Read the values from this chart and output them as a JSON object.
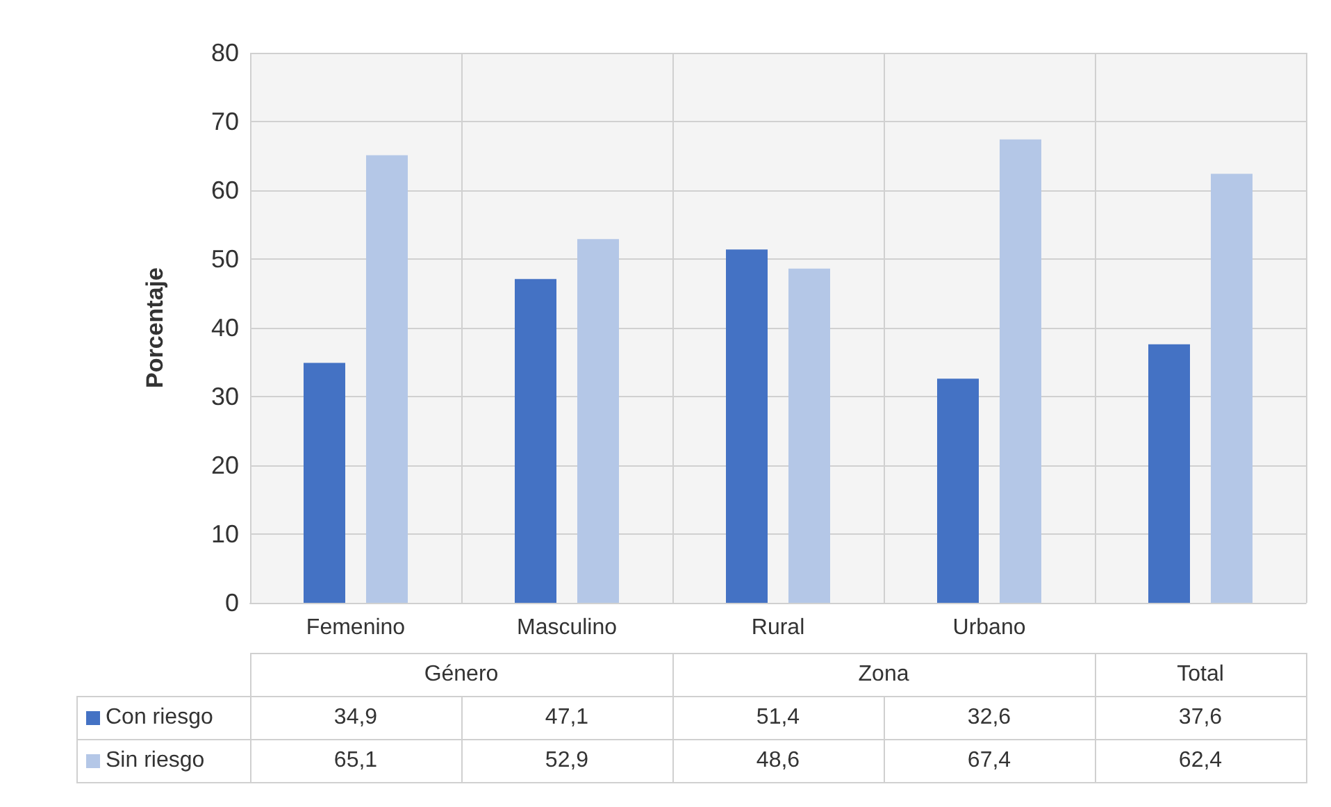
{
  "chart_data": {
    "type": "bar",
    "ylabel": "Porcentaje",
    "categories": [
      "Femenino",
      "Masculino",
      "Rural",
      "Urbano",
      null
    ],
    "series": [
      {
        "name": "Con riesgo",
        "color": "#4472c4",
        "values": [
          34.9,
          47.1,
          51.4,
          32.6,
          37.6
        ],
        "value_labels": [
          "34,9",
          "47,1",
          "51,4",
          "32,6",
          "37,6"
        ]
      },
      {
        "name": "Sin riesgo",
        "color": "#b4c7e7",
        "values": [
          65.1,
          52.9,
          48.6,
          67.4,
          62.4
        ],
        "value_labels": [
          "65,1",
          "52,9",
          "48,6",
          "67,4",
          "62,4"
        ]
      }
    ],
    "ylim": [
      0,
      80
    ],
    "yticks": [
      0,
      10,
      20,
      30,
      40,
      50,
      60,
      70,
      80
    ],
    "grid": true,
    "legend": "bottom",
    "annotations": [
      "Género",
      "Zona",
      "Total"
    ]
  }
}
